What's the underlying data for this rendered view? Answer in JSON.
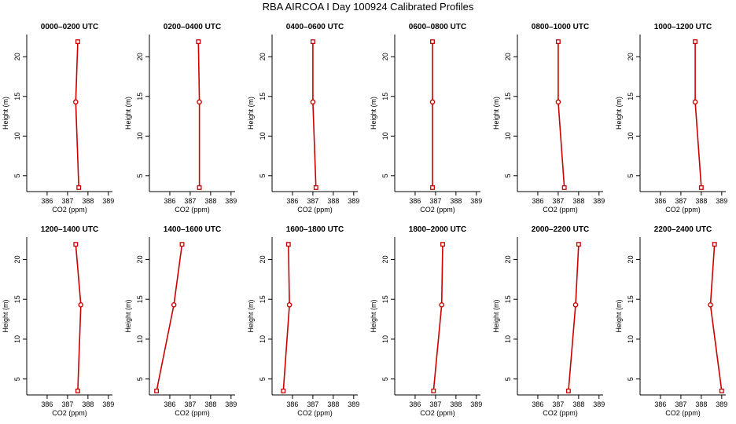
{
  "title": "RBA AIRCOA I  Day 100924  Calibrated Profiles",
  "colors": {
    "profile": "#cc0000",
    "axis": "#000000",
    "background": "#ffffff"
  },
  "chart_data": [
    {
      "type": "line",
      "title": "0000–0200 UTC",
      "xlabel": "CO2 (ppm)",
      "ylabel": "Height (m)",
      "xlim": [
        385,
        389.2
      ],
      "ylim": [
        3,
        22.8
      ],
      "xticks": [
        386,
        387,
        388,
        389
      ],
      "yticks": [
        5,
        10,
        15,
        20
      ],
      "x": [
        387.55,
        387.4,
        387.5
      ],
      "y": [
        3.5,
        14.3,
        21.9
      ],
      "grid": false,
      "legend": "none"
    },
    {
      "type": "line",
      "title": "0200–0400 UTC",
      "xlabel": "CO2 (ppm)",
      "ylabel": "Height (m)",
      "xlim": [
        385,
        389.2
      ],
      "ylim": [
        3,
        22.8
      ],
      "xticks": [
        386,
        387,
        388,
        389
      ],
      "yticks": [
        5,
        10,
        15,
        20
      ],
      "x": [
        387.45,
        387.45,
        387.4
      ],
      "y": [
        3.5,
        14.3,
        21.9
      ],
      "grid": false,
      "legend": "none"
    },
    {
      "type": "line",
      "title": "0400–0600 UTC",
      "xlabel": "CO2 (ppm)",
      "ylabel": "Height (m)",
      "xlim": [
        385,
        389.2
      ],
      "ylim": [
        3,
        22.8
      ],
      "xticks": [
        386,
        387,
        388,
        389
      ],
      "yticks": [
        5,
        10,
        15,
        20
      ],
      "x": [
        387.15,
        387.0,
        387.0
      ],
      "y": [
        3.5,
        14.3,
        21.9
      ],
      "grid": false,
      "legend": "none"
    },
    {
      "type": "line",
      "title": "0600–0800 UTC",
      "xlabel": "CO2 (ppm)",
      "ylabel": "Height (m)",
      "xlim": [
        385,
        389.2
      ],
      "ylim": [
        3,
        22.8
      ],
      "xticks": [
        386,
        387,
        388,
        389
      ],
      "yticks": [
        5,
        10,
        15,
        20
      ],
      "x": [
        386.85,
        386.85,
        386.85
      ],
      "y": [
        3.5,
        14.3,
        21.9
      ],
      "grid": false,
      "legend": "none"
    },
    {
      "type": "line",
      "title": "0800–1000 UTC",
      "xlabel": "CO2 (ppm)",
      "ylabel": "Height (m)",
      "xlim": [
        385,
        389.2
      ],
      "ylim": [
        3,
        22.8
      ],
      "xticks": [
        386,
        387,
        388,
        389
      ],
      "yticks": [
        5,
        10,
        15,
        20
      ],
      "x": [
        387.3,
        387.0,
        387.0
      ],
      "y": [
        3.5,
        14.3,
        21.9
      ],
      "grid": false,
      "legend": "none"
    },
    {
      "type": "line",
      "title": "1000–1200 UTC",
      "xlabel": "CO2 (ppm)",
      "ylabel": "Height (m)",
      "xlim": [
        385,
        389.2
      ],
      "ylim": [
        3,
        22.8
      ],
      "xticks": [
        386,
        387,
        388,
        389
      ],
      "yticks": [
        5,
        10,
        15,
        20
      ],
      "x": [
        388.0,
        387.7,
        387.7
      ],
      "y": [
        3.5,
        14.3,
        21.9
      ],
      "grid": false,
      "legend": "none"
    },
    {
      "type": "line",
      "title": "1200–1400 UTC",
      "xlabel": "CO2 (ppm)",
      "ylabel": "Height (m)",
      "xlim": [
        385,
        389.2
      ],
      "ylim": [
        3,
        22.8
      ],
      "xticks": [
        386,
        387,
        388,
        389
      ],
      "yticks": [
        5,
        10,
        15,
        20
      ],
      "x": [
        387.5,
        387.65,
        387.4
      ],
      "y": [
        3.5,
        14.3,
        21.9
      ],
      "grid": false,
      "legend": "none"
    },
    {
      "type": "line",
      "title": "1400–1600 UTC",
      "xlabel": "CO2 (ppm)",
      "ylabel": "Height (m)",
      "xlim": [
        385,
        389.2
      ],
      "ylim": [
        3,
        22.8
      ],
      "xticks": [
        386,
        387,
        388,
        389
      ],
      "yticks": [
        5,
        10,
        15,
        20
      ],
      "x": [
        385.35,
        386.2,
        386.6
      ],
      "y": [
        3.5,
        14.3,
        21.9
      ],
      "grid": false,
      "legend": "none"
    },
    {
      "type": "line",
      "title": "1600–1800 UTC",
      "xlabel": "CO2 (ppm)",
      "ylabel": "Height (m)",
      "xlim": [
        385,
        389.2
      ],
      "ylim": [
        3,
        22.8
      ],
      "xticks": [
        386,
        387,
        388,
        389
      ],
      "yticks": [
        5,
        10,
        15,
        20
      ],
      "x": [
        385.55,
        385.85,
        385.8
      ],
      "y": [
        3.5,
        14.3,
        21.9
      ],
      "grid": false,
      "legend": "none"
    },
    {
      "type": "line",
      "title": "1800–2000 UTC",
      "xlabel": "CO2 (ppm)",
      "ylabel": "Height (m)",
      "xlim": [
        385,
        389.2
      ],
      "ylim": [
        3,
        22.8
      ],
      "xticks": [
        386,
        387,
        388,
        389
      ],
      "yticks": [
        5,
        10,
        15,
        20
      ],
      "x": [
        386.9,
        387.3,
        387.35
      ],
      "y": [
        3.5,
        14.3,
        21.9
      ],
      "grid": false,
      "legend": "none"
    },
    {
      "type": "line",
      "title": "2000–2200 UTC",
      "xlabel": "CO2 (ppm)",
      "ylabel": "Height (m)",
      "xlim": [
        385,
        389.2
      ],
      "ylim": [
        3,
        22.8
      ],
      "xticks": [
        386,
        387,
        388,
        389
      ],
      "yticks": [
        5,
        10,
        15,
        20
      ],
      "x": [
        387.5,
        387.85,
        388.0
      ],
      "y": [
        3.5,
        14.3,
        21.9
      ],
      "grid": false,
      "legend": "none"
    },
    {
      "type": "line",
      "title": "2200–2400 UTC",
      "xlabel": "CO2 (ppm)",
      "ylabel": "Height (m)",
      "xlim": [
        385,
        389.2
      ],
      "ylim": [
        3,
        22.8
      ],
      "xticks": [
        386,
        387,
        388,
        389
      ],
      "yticks": [
        5,
        10,
        15,
        20
      ],
      "x": [
        389.0,
        388.45,
        388.65
      ],
      "y": [
        3.5,
        14.3,
        21.9
      ],
      "grid": false,
      "legend": "none"
    }
  ]
}
